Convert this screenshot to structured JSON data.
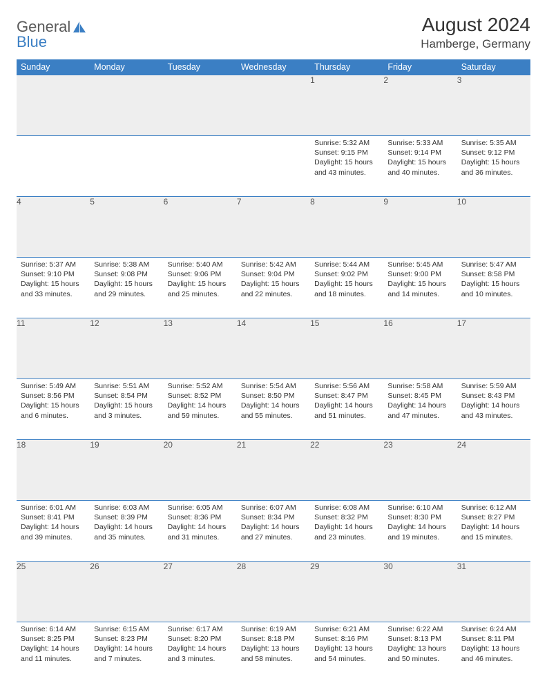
{
  "brand": {
    "part1": "General",
    "part2": "Blue"
  },
  "title": "August 2024",
  "location": "Hamberge, Germany",
  "colors": {
    "header_bg": "#3b7fc4",
    "header_text": "#ffffff",
    "daynum_bg": "#eeeeee",
    "border": "#3b7fc4",
    "text": "#333333"
  },
  "calendar": {
    "type": "table",
    "columns": [
      "Sunday",
      "Monday",
      "Tuesday",
      "Wednesday",
      "Thursday",
      "Friday",
      "Saturday"
    ],
    "weeks": [
      [
        null,
        null,
        null,
        null,
        {
          "d": "1",
          "sr": "5:32 AM",
          "ss": "9:15 PM",
          "dl": "15 hours and 43 minutes."
        },
        {
          "d": "2",
          "sr": "5:33 AM",
          "ss": "9:14 PM",
          "dl": "15 hours and 40 minutes."
        },
        {
          "d": "3",
          "sr": "5:35 AM",
          "ss": "9:12 PM",
          "dl": "15 hours and 36 minutes."
        }
      ],
      [
        {
          "d": "4",
          "sr": "5:37 AM",
          "ss": "9:10 PM",
          "dl": "15 hours and 33 minutes."
        },
        {
          "d": "5",
          "sr": "5:38 AM",
          "ss": "9:08 PM",
          "dl": "15 hours and 29 minutes."
        },
        {
          "d": "6",
          "sr": "5:40 AM",
          "ss": "9:06 PM",
          "dl": "15 hours and 25 minutes."
        },
        {
          "d": "7",
          "sr": "5:42 AM",
          "ss": "9:04 PM",
          "dl": "15 hours and 22 minutes."
        },
        {
          "d": "8",
          "sr": "5:44 AM",
          "ss": "9:02 PM",
          "dl": "15 hours and 18 minutes."
        },
        {
          "d": "9",
          "sr": "5:45 AM",
          "ss": "9:00 PM",
          "dl": "15 hours and 14 minutes."
        },
        {
          "d": "10",
          "sr": "5:47 AM",
          "ss": "8:58 PM",
          "dl": "15 hours and 10 minutes."
        }
      ],
      [
        {
          "d": "11",
          "sr": "5:49 AM",
          "ss": "8:56 PM",
          "dl": "15 hours and 6 minutes."
        },
        {
          "d": "12",
          "sr": "5:51 AM",
          "ss": "8:54 PM",
          "dl": "15 hours and 3 minutes."
        },
        {
          "d": "13",
          "sr": "5:52 AM",
          "ss": "8:52 PM",
          "dl": "14 hours and 59 minutes."
        },
        {
          "d": "14",
          "sr": "5:54 AM",
          "ss": "8:50 PM",
          "dl": "14 hours and 55 minutes."
        },
        {
          "d": "15",
          "sr": "5:56 AM",
          "ss": "8:47 PM",
          "dl": "14 hours and 51 minutes."
        },
        {
          "d": "16",
          "sr": "5:58 AM",
          "ss": "8:45 PM",
          "dl": "14 hours and 47 minutes."
        },
        {
          "d": "17",
          "sr": "5:59 AM",
          "ss": "8:43 PM",
          "dl": "14 hours and 43 minutes."
        }
      ],
      [
        {
          "d": "18",
          "sr": "6:01 AM",
          "ss": "8:41 PM",
          "dl": "14 hours and 39 minutes."
        },
        {
          "d": "19",
          "sr": "6:03 AM",
          "ss": "8:39 PM",
          "dl": "14 hours and 35 minutes."
        },
        {
          "d": "20",
          "sr": "6:05 AM",
          "ss": "8:36 PM",
          "dl": "14 hours and 31 minutes."
        },
        {
          "d": "21",
          "sr": "6:07 AM",
          "ss": "8:34 PM",
          "dl": "14 hours and 27 minutes."
        },
        {
          "d": "22",
          "sr": "6:08 AM",
          "ss": "8:32 PM",
          "dl": "14 hours and 23 minutes."
        },
        {
          "d": "23",
          "sr": "6:10 AM",
          "ss": "8:30 PM",
          "dl": "14 hours and 19 minutes."
        },
        {
          "d": "24",
          "sr": "6:12 AM",
          "ss": "8:27 PM",
          "dl": "14 hours and 15 minutes."
        }
      ],
      [
        {
          "d": "25",
          "sr": "6:14 AM",
          "ss": "8:25 PM",
          "dl": "14 hours and 11 minutes."
        },
        {
          "d": "26",
          "sr": "6:15 AM",
          "ss": "8:23 PM",
          "dl": "14 hours and 7 minutes."
        },
        {
          "d": "27",
          "sr": "6:17 AM",
          "ss": "8:20 PM",
          "dl": "14 hours and 3 minutes."
        },
        {
          "d": "28",
          "sr": "6:19 AM",
          "ss": "8:18 PM",
          "dl": "13 hours and 58 minutes."
        },
        {
          "d": "29",
          "sr": "6:21 AM",
          "ss": "8:16 PM",
          "dl": "13 hours and 54 minutes."
        },
        {
          "d": "30",
          "sr": "6:22 AM",
          "ss": "8:13 PM",
          "dl": "13 hours and 50 minutes."
        },
        {
          "d": "31",
          "sr": "6:24 AM",
          "ss": "8:11 PM",
          "dl": "13 hours and 46 minutes."
        }
      ]
    ],
    "labels": {
      "sunrise": "Sunrise:",
      "sunset": "Sunset:",
      "daylight": "Daylight:"
    }
  }
}
